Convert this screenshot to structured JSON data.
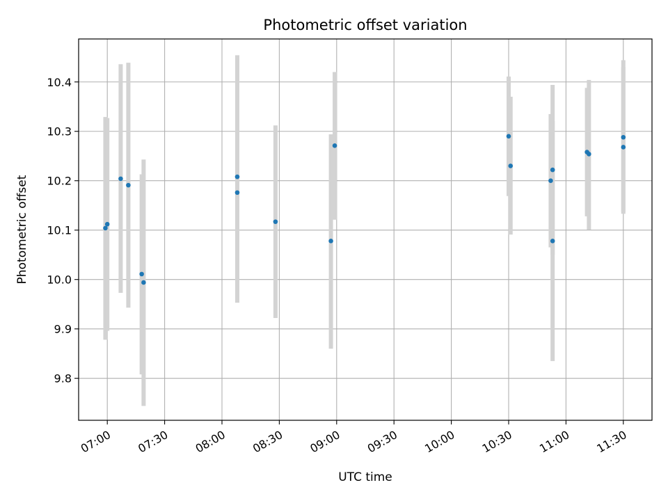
{
  "chart_data": {
    "type": "scatter",
    "title": "Photometric offset variation",
    "xlabel": "UTC time",
    "ylabel": "Photometric offset",
    "xlim": [
      "06:45",
      "11:45"
    ],
    "ylim": [
      9.715,
      10.487
    ],
    "x_ticks": [
      "07:00",
      "07:30",
      "08:00",
      "08:30",
      "09:00",
      "09:30",
      "10:00",
      "10:30",
      "11:00",
      "11:30"
    ],
    "y_ticks": [
      "9.8",
      "9.9",
      "10.0",
      "10.1",
      "10.2",
      "10.3",
      "10.4"
    ],
    "grid": true,
    "marker_color": "#1f77b4",
    "error_bar_color": "#d3d3d3",
    "points": [
      {
        "x": "06:59",
        "y": 10.104,
        "ylow": 9.878,
        "yhigh": 10.329
      },
      {
        "x": "07:00",
        "y": 10.112,
        "ylow": 9.896,
        "yhigh": 10.327
      },
      {
        "x": "07:07",
        "y": 10.204,
        "ylow": 9.973,
        "yhigh": 10.436
      },
      {
        "x": "07:11",
        "y": 10.191,
        "ylow": 9.943,
        "yhigh": 10.439
      },
      {
        "x": "07:18",
        "y": 10.011,
        "ylow": 9.808,
        "yhigh": 10.213
      },
      {
        "x": "07:19",
        "y": 9.994,
        "ylow": 9.744,
        "yhigh": 10.243
      },
      {
        "x": "08:08",
        "y": 10.208,
        "ylow": 9.963,
        "yhigh": 10.454
      },
      {
        "x": "08:08",
        "y": 10.176,
        "ylow": 9.953,
        "yhigh": 10.399
      },
      {
        "x": "08:28",
        "y": 10.117,
        "ylow": 9.922,
        "yhigh": 10.312
      },
      {
        "x": "08:57",
        "y": 10.078,
        "ylow": 9.86,
        "yhigh": 10.294
      },
      {
        "x": "08:59",
        "y": 10.271,
        "ylow": 10.121,
        "yhigh": 10.42
      },
      {
        "x": "10:30",
        "y": 10.29,
        "ylow": 10.169,
        "yhigh": 10.411
      },
      {
        "x": "10:31",
        "y": 10.23,
        "ylow": 10.091,
        "yhigh": 10.37
      },
      {
        "x": "10:52",
        "y": 10.2,
        "ylow": 10.065,
        "yhigh": 10.335
      },
      {
        "x": "10:53",
        "y": 10.222,
        "ylow": 10.05,
        "yhigh": 10.394
      },
      {
        "x": "10:53",
        "y": 10.078,
        "ylow": 9.835,
        "yhigh": 10.321
      },
      {
        "x": "11:11",
        "y": 10.258,
        "ylow": 10.128,
        "yhigh": 10.388
      },
      {
        "x": "11:12",
        "y": 10.254,
        "ylow": 10.101,
        "yhigh": 10.404
      },
      {
        "x": "11:30",
        "y": 10.288,
        "ylow": 10.133,
        "yhigh": 10.444
      },
      {
        "x": "11:30",
        "y": 10.268,
        "ylow": 10.137,
        "yhigh": 10.43
      }
    ]
  }
}
